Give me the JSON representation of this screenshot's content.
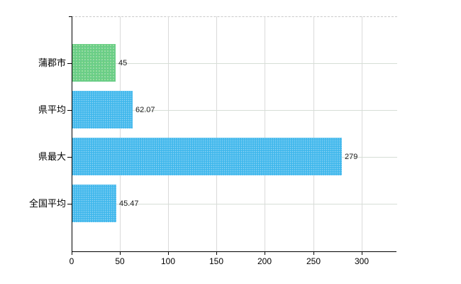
{
  "chart_data": {
    "type": "bar",
    "orientation": "horizontal",
    "title": "",
    "xlabel": "",
    "ylabel": "",
    "categories": [
      "蒲郡市",
      "県平均",
      "県最大",
      "全国平均"
    ],
    "values": [
      45,
      62.07,
      279,
      45.47
    ],
    "value_labels": [
      "45",
      "62.07",
      "279",
      "45.47"
    ],
    "bar_colors": [
      "#6ace85",
      "#41b8ec",
      "#41b8ec",
      "#41b8ec"
    ],
    "x_ticks": [
      0,
      50,
      100,
      150,
      200,
      250,
      300
    ],
    "x_tick_labels": [
      "0",
      "50",
      "100",
      "150",
      "200",
      "250",
      "300"
    ],
    "xlim": [
      0,
      337
    ],
    "grid": true,
    "legend": false
  },
  "colors": {
    "highlight_bar": "#6ace85",
    "default_bar": "#41b8ec",
    "axis": "#000000",
    "gridline_vertical": "#dadada",
    "gridline_horizontal": "#d6ded6",
    "plot_top_border": "#c9c9c9",
    "background": "#ffffff",
    "text": "#000000"
  }
}
